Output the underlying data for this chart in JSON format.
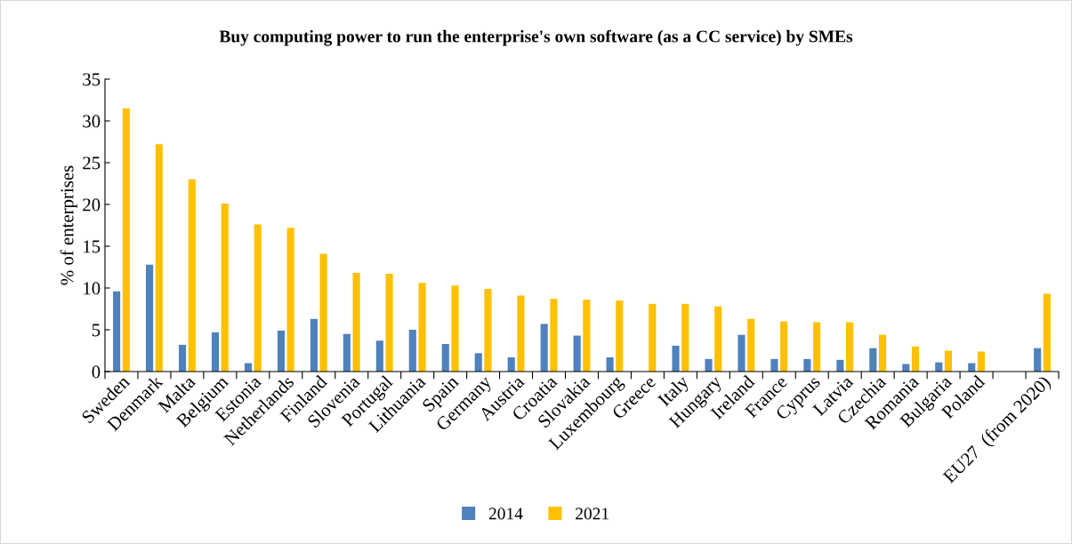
{
  "chart_data": {
    "type": "bar",
    "title": "Buy computing power to run the enterprise's own software (as a CC service) by SMEs",
    "ylabel": "% of enterprises",
    "categories": [
      "Sweden",
      "Denmark",
      "Malta",
      "Belgium",
      "Estonia",
      "Netherlands",
      "Finland",
      "Slovenia",
      "Portugal",
      "Lithuania",
      "Spain",
      "Germany",
      "Austria",
      "Croatia",
      "Slovakia",
      "Luxembourg",
      "Greece",
      "Italy",
      "Hungary",
      "Ireland",
      "France",
      "Cyprus",
      "Latvia",
      "Czechia",
      "Romania",
      "Bulgaria",
      "Poland",
      null,
      "EU27  (from 2020)"
    ],
    "series": [
      {
        "name": "2014",
        "color": "#4f81bd",
        "values": [
          9.6,
          12.8,
          3.2,
          4.7,
          1.0,
          4.9,
          6.3,
          4.5,
          3.7,
          5.0,
          3.3,
          2.2,
          1.7,
          5.7,
          4.3,
          1.7,
          null,
          3.1,
          1.5,
          4.4,
          1.5,
          1.5,
          1.4,
          2.8,
          0.9,
          1.1,
          1.0,
          null,
          2.8
        ]
      },
      {
        "name": "2021",
        "color": "#ffc000",
        "values": [
          31.5,
          27.2,
          23.0,
          20.1,
          17.6,
          17.2,
          14.1,
          11.8,
          11.7,
          10.6,
          10.3,
          9.9,
          9.1,
          8.7,
          8.6,
          8.5,
          8.1,
          8.1,
          7.8,
          6.3,
          6.0,
          5.9,
          5.9,
          4.4,
          3.0,
          2.5,
          2.4,
          null,
          9.3
        ]
      }
    ],
    "ylim": [
      0,
      35
    ],
    "yticks": [
      0,
      5,
      10,
      15,
      20,
      25,
      30,
      35
    ],
    "grid": false,
    "legend": "bottom"
  }
}
